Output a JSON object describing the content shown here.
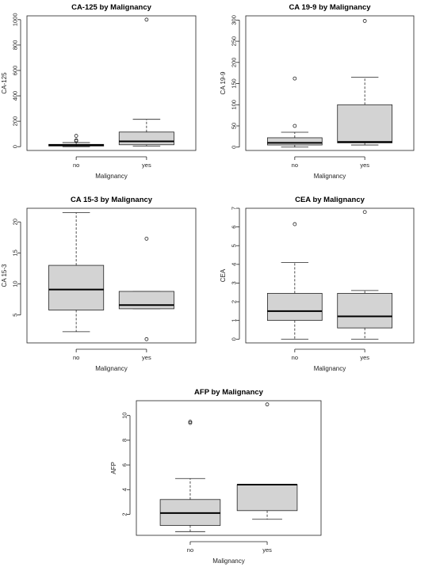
{
  "chart_data": [
    {
      "type": "box",
      "title": "CA-125 by Malignancy",
      "xlabel": "Malignancy",
      "ylabel": "CA-125",
      "categories": [
        "no",
        "yes"
      ],
      "ylim": [
        -30,
        1030
      ],
      "yticks": [
        0,
        200,
        400,
        600,
        800,
        1000
      ],
      "boxes": [
        {
          "category": "no",
          "whisker_low": 0,
          "q1": 5,
          "median": 12,
          "q3": 18,
          "whisker_high": 32,
          "outliers": [
            45,
            50,
            85
          ]
        },
        {
          "category": "yes",
          "whisker_low": 5,
          "q1": 15,
          "median": 42,
          "q3": 115,
          "whisker_high": 215,
          "outliers": [
            1000
          ]
        }
      ]
    },
    {
      "type": "box",
      "title": "CA 19-9 by Malignancy",
      "xlabel": "Malignancy",
      "ylabel": "CA 19-9",
      "categories": [
        "no",
        "yes"
      ],
      "ylim": [
        -8,
        310
      ],
      "yticks": [
        0,
        50,
        100,
        150,
        200,
        250,
        300
      ],
      "boxes": [
        {
          "category": "no",
          "whisker_low": 0,
          "q1": 5,
          "median": 10,
          "q3": 22,
          "whisker_high": 35,
          "outliers": [
            50,
            162
          ]
        },
        {
          "category": "yes",
          "whisker_low": 5,
          "q1": 10,
          "median": 12,
          "q3": 100,
          "whisker_high": 165,
          "outliers": [
            298
          ]
        }
      ]
    },
    {
      "type": "box",
      "title": "CA 15-3 by Malignancy",
      "xlabel": "Malignancy",
      "ylabel": "CA 15-3",
      "categories": [
        "no",
        "yes"
      ],
      "ylim": [
        0.5,
        22.2
      ],
      "yticks": [
        5,
        10,
        15,
        20
      ],
      "boxes": [
        {
          "category": "no",
          "whisker_low": 2.3,
          "q1": 5.8,
          "median": 9.1,
          "q3": 13.0,
          "whisker_high": 21.5,
          "outliers": []
        },
        {
          "category": "yes",
          "whisker_low": 6.0,
          "q1": 6.0,
          "median": 6.6,
          "q3": 8.8,
          "whisker_high": 8.8,
          "outliers": [
            1.1,
            17.3
          ]
        }
      ]
    },
    {
      "type": "box",
      "title": "CEA by Malignancy",
      "xlabel": "Malignancy",
      "ylabel": "CEA",
      "categories": [
        "no",
        "yes"
      ],
      "ylim": [
        -0.2,
        7.0
      ],
      "yticks": [
        0,
        1,
        2,
        3,
        4,
        5,
        6,
        7
      ],
      "boxes": [
        {
          "category": "no",
          "whisker_low": 0.0,
          "q1": 1.0,
          "median": 1.5,
          "q3": 2.45,
          "whisker_high": 4.1,
          "outliers": [
            6.15
          ]
        },
        {
          "category": "yes",
          "whisker_low": 0.0,
          "q1": 0.6,
          "median": 1.22,
          "q3": 2.45,
          "whisker_high": 2.6,
          "outliers": [
            6.8
          ]
        }
      ]
    },
    {
      "type": "box",
      "title": "AFP by Malignancy",
      "xlabel": "Malignancy",
      "ylabel": "AFP",
      "categories": [
        "no",
        "yes"
      ],
      "ylim": [
        0.3,
        11.2
      ],
      "yticks": [
        2,
        4,
        6,
        8,
        10
      ],
      "boxes": [
        {
          "category": "no",
          "whisker_low": 0.6,
          "q1": 1.1,
          "median": 2.1,
          "q3": 3.2,
          "whisker_high": 4.9,
          "outliers": [
            9.4,
            9.5
          ]
        },
        {
          "category": "yes",
          "whisker_low": 1.6,
          "q1": 2.3,
          "median": 4.4,
          "q3": 4.4,
          "whisker_high": 4.4,
          "outliers": [
            10.9
          ]
        }
      ]
    }
  ]
}
